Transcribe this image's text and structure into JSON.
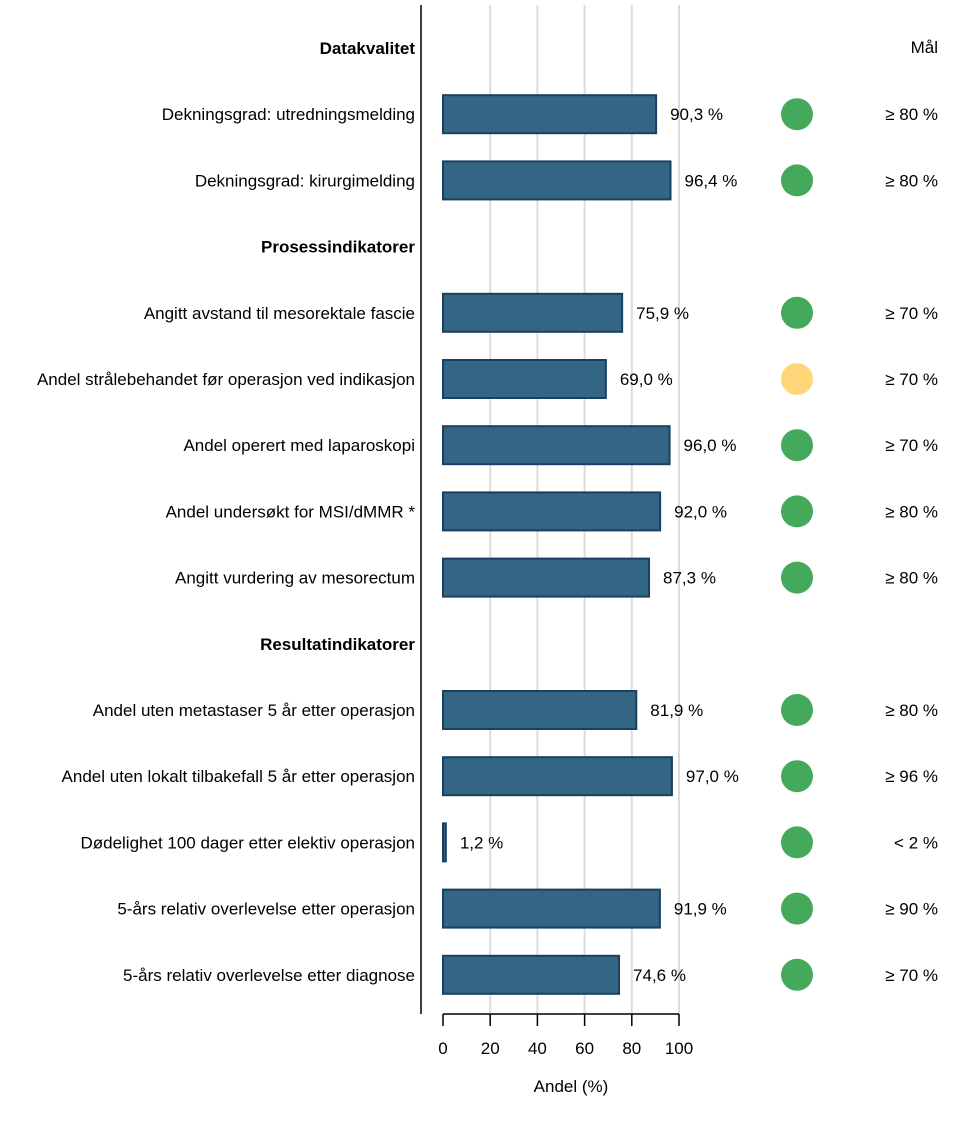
{
  "chart_data": {
    "type": "bar",
    "orientation": "horizontal",
    "xlabel": "Andel (%)",
    "xlim": [
      0,
      100
    ],
    "xticks": [
      "0",
      "20",
      "40",
      "60",
      "80",
      "100"
    ],
    "xtick_values": [
      0,
      20,
      40,
      60,
      80,
      100
    ],
    "grid": true,
    "target_header": "Mål",
    "colors": {
      "bar": "#336585",
      "bar_edge": "#1b3f63",
      "green": "#45a95b",
      "yellow": "#ffd778",
      "grid": "#dcdcdc"
    },
    "rows": [
      {
        "kind": "section",
        "label": "Datakvalitet"
      },
      {
        "kind": "item",
        "label": "Dekningsgrad: utredningsmelding",
        "value": 90.3,
        "value_label": "90,3 %",
        "status": "green",
        "target": "≥ 80 %"
      },
      {
        "kind": "item",
        "label": "Dekningsgrad: kirurgimelding",
        "value": 96.4,
        "value_label": "96,4 %",
        "status": "green",
        "target": "≥ 80 %"
      },
      {
        "kind": "section",
        "label": "Prosessindikatorer"
      },
      {
        "kind": "item",
        "label": "Angitt avstand til mesorektale fascie",
        "value": 75.9,
        "value_label": "75,9 %",
        "status": "green",
        "target": "≥ 70 %"
      },
      {
        "kind": "item",
        "label": "Andel strålebehandet før operasjon ved indikasjon",
        "value": 69.0,
        "value_label": "69,0 %",
        "status": "yellow",
        "target": "≥ 70 %"
      },
      {
        "kind": "item",
        "label": "Andel operert med laparoskopi",
        "value": 96.0,
        "value_label": "96,0 %",
        "status": "green",
        "target": "≥ 70 %"
      },
      {
        "kind": "item",
        "label": "Andel undersøkt for MSI/dMMR *",
        "value": 92.0,
        "value_label": "92,0 %",
        "status": "green",
        "target": "≥ 80 %"
      },
      {
        "kind": "item",
        "label": "Angitt vurdering av mesorectum",
        "value": 87.3,
        "value_label": "87,3 %",
        "status": "green",
        "target": "≥ 80 %"
      },
      {
        "kind": "section",
        "label": "Resultatindikatorer"
      },
      {
        "kind": "item",
        "label": "Andel uten metastaser 5 år etter operasjon",
        "value": 81.9,
        "value_label": "81,9 %",
        "status": "green",
        "target": "≥ 80 %"
      },
      {
        "kind": "item",
        "label": "Andel uten lokalt tilbakefall 5 år etter operasjon",
        "value": 97.0,
        "value_label": "97,0 %",
        "status": "green",
        "target": "≥ 96 %"
      },
      {
        "kind": "item",
        "label": "Dødelighet 100 dager etter elektiv operasjon",
        "value": 1.2,
        "value_label": "1,2 %",
        "status": "green",
        "target": "< 2 %"
      },
      {
        "kind": "item",
        "label": "5-års relativ overlevelse etter operasjon",
        "value": 91.9,
        "value_label": "91,9 %",
        "status": "green",
        "target": "≥ 90 %"
      },
      {
        "kind": "item",
        "label": "5-års relativ overlevelse etter diagnose",
        "value": 74.6,
        "value_label": "74,6 %",
        "status": "green",
        "target": "≥ 70 %"
      }
    ]
  }
}
